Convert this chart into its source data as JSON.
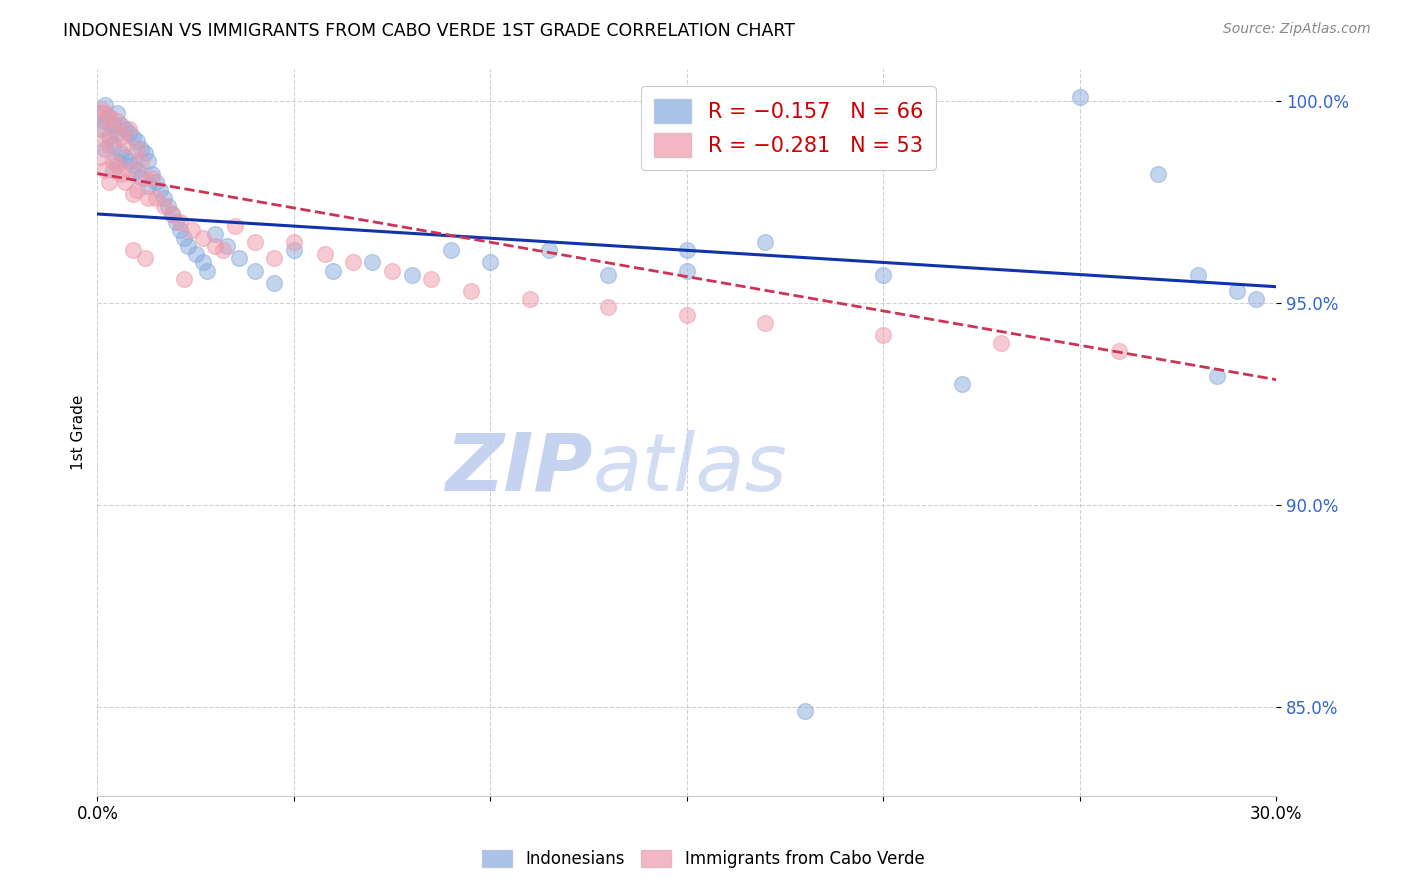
{
  "title": "INDONESIAN VS IMMIGRANTS FROM CABO VERDE 1ST GRADE CORRELATION CHART",
  "source": "Source: ZipAtlas.com",
  "ylabel": "1st Grade",
  "xmin": 0.0,
  "xmax": 0.3,
  "ymin": 0.828,
  "ymax": 1.008,
  "yticks": [
    0.85,
    0.9,
    0.95,
    1.0
  ],
  "ytick_labels": [
    "85.0%",
    "90.0%",
    "95.0%",
    "100.0%"
  ],
  "xticks": [
    0.0,
    0.05,
    0.1,
    0.15,
    0.2,
    0.25,
    0.3
  ],
  "xtick_labels": [
    "0.0%",
    "",
    "",
    "",
    "",
    "",
    "30.0%"
  ],
  "legend_blue_r": "R = −0.157",
  "legend_blue_n": "N = 66",
  "legend_pink_r": "R = −0.281",
  "legend_pink_n": "N = 53",
  "blue_scatter_color": "#88AADD",
  "pink_scatter_color": "#EE99AA",
  "blue_line_color": "#1133AA",
  "pink_line_color": "#CC3355",
  "indonesians_x": [
    0.001,
    0.001,
    0.002,
    0.002,
    0.002,
    0.003,
    0.003,
    0.004,
    0.004,
    0.004,
    0.005,
    0.005,
    0.005,
    0.006,
    0.006,
    0.007,
    0.007,
    0.008,
    0.008,
    0.009,
    0.009,
    0.01,
    0.01,
    0.011,
    0.011,
    0.012,
    0.013,
    0.013,
    0.014,
    0.015,
    0.016,
    0.017,
    0.018,
    0.019,
    0.02,
    0.021,
    0.022,
    0.023,
    0.025,
    0.027,
    0.028,
    0.03,
    0.033,
    0.036,
    0.04,
    0.045,
    0.05,
    0.06,
    0.07,
    0.08,
    0.09,
    0.1,
    0.115,
    0.13,
    0.15,
    0.17,
    0.2,
    0.22,
    0.25,
    0.27,
    0.28,
    0.285,
    0.29,
    0.295,
    0.15,
    0.18
  ],
  "indonesians_y": [
    0.997,
    0.993,
    0.999,
    0.995,
    0.988,
    0.996,
    0.991,
    0.994,
    0.989,
    0.983,
    0.997,
    0.992,
    0.985,
    0.994,
    0.987,
    0.993,
    0.986,
    0.992,
    0.985,
    0.991,
    0.984,
    0.99,
    0.983,
    0.988,
    0.981,
    0.987,
    0.985,
    0.979,
    0.982,
    0.98,
    0.978,
    0.976,
    0.974,
    0.972,
    0.97,
    0.968,
    0.966,
    0.964,
    0.962,
    0.96,
    0.958,
    0.967,
    0.964,
    0.961,
    0.958,
    0.955,
    0.963,
    0.958,
    0.96,
    0.957,
    0.963,
    0.96,
    0.963,
    0.957,
    0.963,
    0.965,
    0.957,
    0.93,
    1.001,
    0.982,
    0.957,
    0.932,
    0.953,
    0.951,
    0.958,
    0.849
  ],
  "cabo_x": [
    0.001,
    0.001,
    0.001,
    0.002,
    0.002,
    0.002,
    0.003,
    0.003,
    0.003,
    0.004,
    0.004,
    0.005,
    0.005,
    0.006,
    0.006,
    0.007,
    0.007,
    0.008,
    0.008,
    0.009,
    0.01,
    0.01,
    0.011,
    0.012,
    0.013,
    0.014,
    0.015,
    0.017,
    0.019,
    0.021,
    0.024,
    0.027,
    0.03,
    0.035,
    0.04,
    0.045,
    0.05,
    0.058,
    0.065,
    0.075,
    0.085,
    0.095,
    0.11,
    0.13,
    0.15,
    0.17,
    0.2,
    0.23,
    0.26,
    0.009,
    0.012,
    0.022,
    0.032
  ],
  "cabo_y": [
    0.998,
    0.993,
    0.986,
    0.997,
    0.99,
    0.983,
    0.996,
    0.989,
    0.98,
    0.993,
    0.985,
    0.995,
    0.984,
    0.991,
    0.982,
    0.989,
    0.98,
    0.993,
    0.983,
    0.977,
    0.988,
    0.978,
    0.985,
    0.981,
    0.976,
    0.981,
    0.976,
    0.974,
    0.972,
    0.97,
    0.968,
    0.966,
    0.964,
    0.969,
    0.965,
    0.961,
    0.965,
    0.962,
    0.96,
    0.958,
    0.956,
    0.953,
    0.951,
    0.949,
    0.947,
    0.945,
    0.942,
    0.94,
    0.938,
    0.963,
    0.961,
    0.956,
    0.963
  ],
  "watermark_zip": "ZIP",
  "watermark_atlas": "atlas",
  "background_color": "#FFFFFF",
  "grid_color": "#CCCCCC",
  "blue_line_intercept": 0.972,
  "blue_line_slope": -0.06,
  "pink_line_intercept": 0.982,
  "pink_line_slope": -0.17
}
